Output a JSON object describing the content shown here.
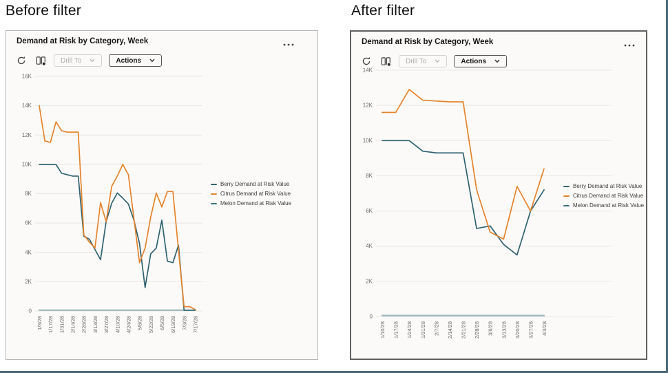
{
  "page": {
    "frame_color": "#4a6b77"
  },
  "colors": {
    "berry": "#2f6270",
    "citrus": "#e5832c",
    "melon": "#3c7680",
    "grid": "#e8e6e2",
    "axis_text": "#6c6a67",
    "legend_text": "#3c3b39",
    "icon": "#3f3f3f"
  },
  "panels": [
    {
      "heading": "Before filter",
      "title": "Demand at Risk by Category, Week",
      "toolbar": {
        "drill_label": "Drill To",
        "actions_label": "Actions"
      },
      "icons": {
        "menu": "ellipsis-icon",
        "refresh": "refresh-icon",
        "data_view": "book-columns-icon",
        "chevron": "chevron-down-icon"
      }
    },
    {
      "heading": "After filter",
      "title": "Demand at Risk by Category, Week",
      "toolbar": {
        "drill_label": "Drill To",
        "actions_label": "Actions"
      },
      "icons": {
        "menu": "ellipsis-icon",
        "refresh": "refresh-icon",
        "data_view": "book-columns-icon",
        "chevron": "chevron-down-icon"
      }
    }
  ],
  "chart_data": [
    {
      "type": "line",
      "title": "Demand at Risk by Category, Week",
      "grid": true,
      "legend_position": "right",
      "ylim": [
        0,
        16000
      ],
      "ytick_step": 2000,
      "ytick_labels": [
        "16K",
        "14K",
        "12K",
        "10K",
        "8K",
        "6K",
        "4K",
        "2K",
        "0"
      ],
      "label_every": 2,
      "categories": [
        "1/3/28",
        "1/10/28",
        "1/17/28",
        "1/24/28",
        "1/31/28",
        "2/7/28",
        "2/14/28",
        "2/21/28",
        "2/28/28",
        "3/6/28",
        "3/13/28",
        "3/20/28",
        "3/27/28",
        "4/3/28",
        "4/10/28",
        "4/17/28",
        "4/24/28",
        "5/1/28",
        "5/8/28",
        "5/15/28",
        "5/22/28",
        "5/29/28",
        "6/5/28",
        "6/12/28",
        "6/19/28",
        "6/26/28",
        "7/3/28",
        "7/10/28",
        "7/17/28"
      ],
      "series": [
        {
          "name": "Berry Demand at Risk Value",
          "color_key": "berry",
          "values": [
            10000,
            10000,
            10000,
            10000,
            9400,
            9300,
            9200,
            9200,
            5100,
            4900,
            4200,
            3500,
            6100,
            7350,
            8050,
            7700,
            7300,
            6200,
            4600,
            1600,
            3900,
            4300,
            6200,
            3400,
            3300,
            4500,
            50,
            50,
            50
          ]
        },
        {
          "name": "Citrus Demand at Risk Value",
          "color_key": "citrus",
          "values": [
            14000,
            11600,
            11500,
            12900,
            12300,
            12200,
            12200,
            12200,
            5200,
            4700,
            4300,
            7400,
            6100,
            8500,
            9200,
            10000,
            9300,
            6300,
            3300,
            4300,
            6400,
            8050,
            7100,
            8150,
            8150,
            4150,
            300,
            300,
            100
          ]
        },
        {
          "name": "Melon Demand at Risk Value",
          "color_key": "melon",
          "values": [
            60,
            60,
            60,
            60,
            60,
            60,
            60,
            60,
            60,
            60,
            60,
            60,
            60,
            60,
            60,
            60,
            60,
            60,
            60,
            60,
            60,
            60,
            60,
            60,
            60,
            60,
            60,
            60,
            60
          ]
        }
      ]
    },
    {
      "type": "line",
      "title": "Demand at Risk by Category, Week",
      "grid": true,
      "legend_position": "right",
      "ylim": [
        0,
        14000
      ],
      "ytick_step": 2000,
      "ytick_labels": [
        "14K",
        "12K",
        "10K",
        "8K",
        "6K",
        "4K",
        "2K",
        "0"
      ],
      "label_every": 1,
      "categories": [
        "1/10/28",
        "1/17/28",
        "1/24/28",
        "1/31/28",
        "2/7/28",
        "2/14/28",
        "2/21/28",
        "2/28/28",
        "3/6/28",
        "3/13/28",
        "3/20/28",
        "3/27/28",
        "4/3/28"
      ],
      "series": [
        {
          "name": "Berry Demand at Risk Value",
          "color_key": "berry",
          "values": [
            10000,
            10000,
            10000,
            9400,
            9300,
            9300,
            9300,
            5000,
            5150,
            4100,
            3500,
            6000,
            7200
          ]
        },
        {
          "name": "Citrus Demand at Risk Value",
          "color_key": "citrus",
          "values": [
            11600,
            11600,
            12900,
            12300,
            12250,
            12200,
            12200,
            7200,
            4800,
            4400,
            7400,
            6000,
            8400
          ]
        },
        {
          "name": "Melon Demand at Risk Value",
          "color_key": "melon",
          "values": [
            60,
            60,
            60,
            60,
            60,
            60,
            60,
            60,
            60,
            60,
            60,
            60,
            60
          ]
        }
      ]
    }
  ]
}
